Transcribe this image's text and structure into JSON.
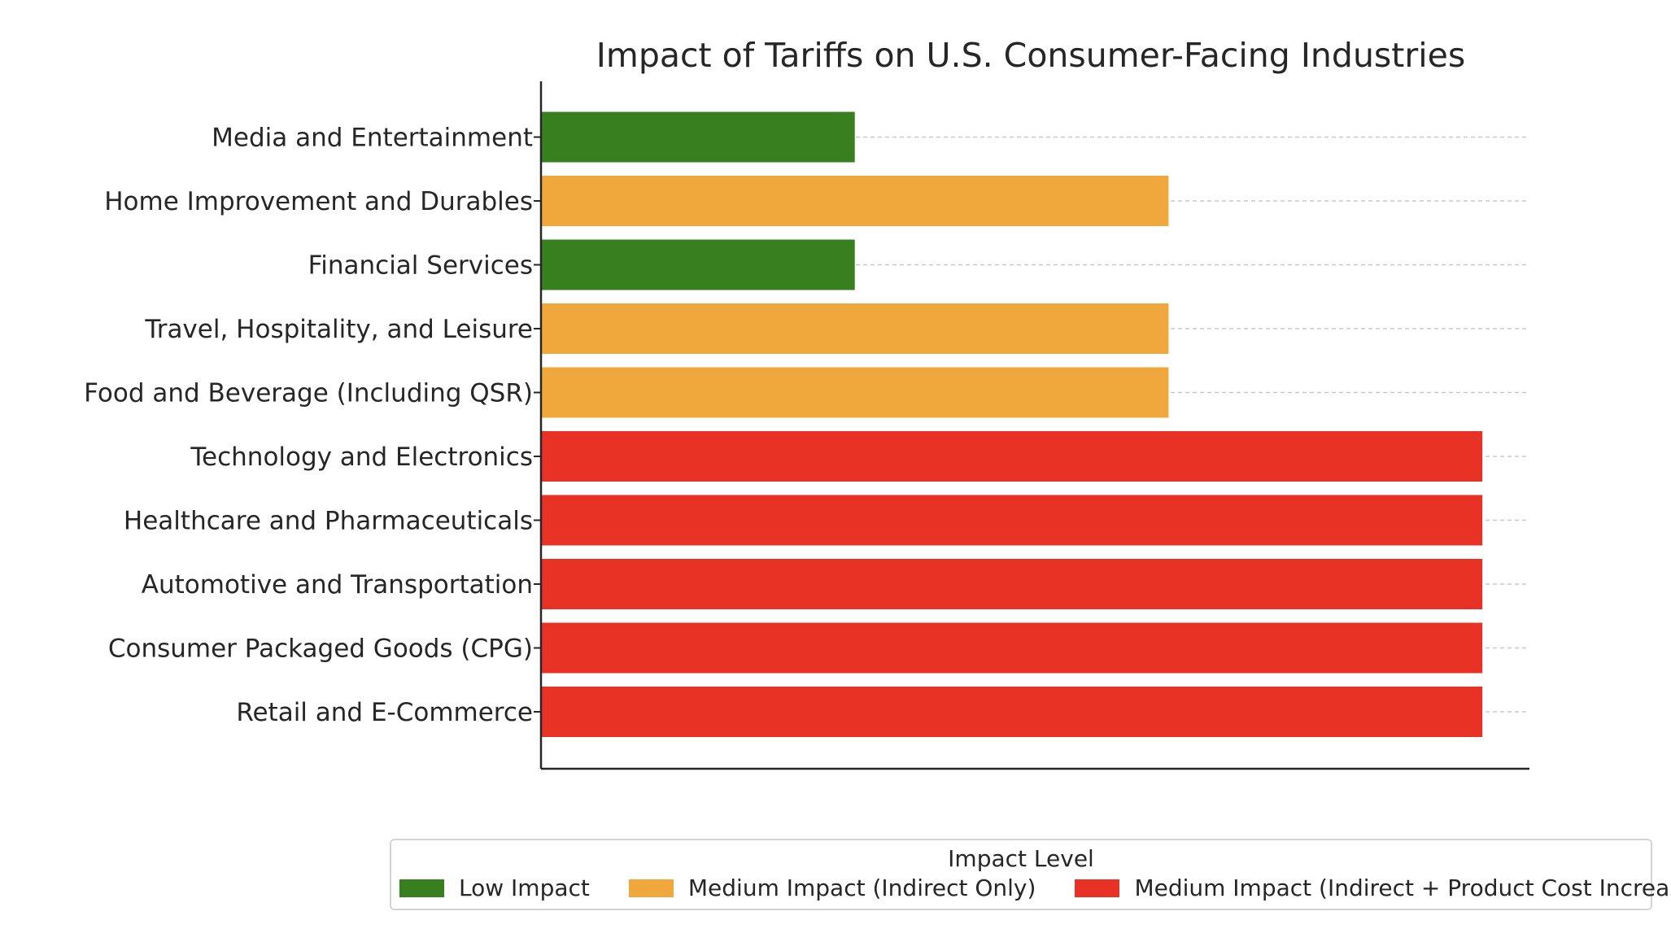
{
  "chart_data": {
    "type": "bar",
    "orientation": "horizontal",
    "title": "Impact of Tariffs on U.S. Consumer-Facing Industries",
    "xlabel": "",
    "ylabel": "",
    "categories": [
      "Retail and E-Commerce",
      "Consumer Packaged Goods (CPG)",
      "Automotive and Transportation",
      "Healthcare and Pharmaceuticals",
      "Technology and Electronics",
      "Food and Beverage (Including QSR)",
      "Travel, Hospitality, and Leisure",
      "Financial Services",
      "Home Improvement and Durables",
      "Media and Entertainment"
    ],
    "values": [
      3,
      3,
      3,
      3,
      3,
      2,
      2,
      1,
      2,
      1
    ],
    "levels": [
      "Medium Impact (Indirect + Product Cost Increases)",
      "Medium Impact (Indirect + Product Cost Increases)",
      "Medium Impact (Indirect + Product Cost Increases)",
      "Medium Impact (Indirect + Product Cost Increases)",
      "Medium Impact (Indirect + Product Cost Increases)",
      "Medium Impact (Indirect Only)",
      "Medium Impact (Indirect Only)",
      "Low Impact",
      "Medium Impact (Indirect Only)",
      "Low Impact"
    ],
    "xlim": [
      0,
      3.15
    ],
    "grid": "x-dashed",
    "x_ticks_visible": false,
    "legend": {
      "title": "Impact Level",
      "placement": "bottom",
      "entries": [
        {
          "label": "Low Impact",
          "color": "#38801f"
        },
        {
          "label": "Medium Impact (Indirect Only)",
          "color": "#f0a83c"
        },
        {
          "label": "Medium Impact (Indirect + Product Cost Increases)",
          "color": "#e83225"
        }
      ]
    },
    "colors": {
      "Low Impact": "#38801f",
      "Medium Impact (Indirect Only)": "#f0a83c",
      "Medium Impact (Indirect + Product Cost Increases)": "#e83225"
    }
  }
}
